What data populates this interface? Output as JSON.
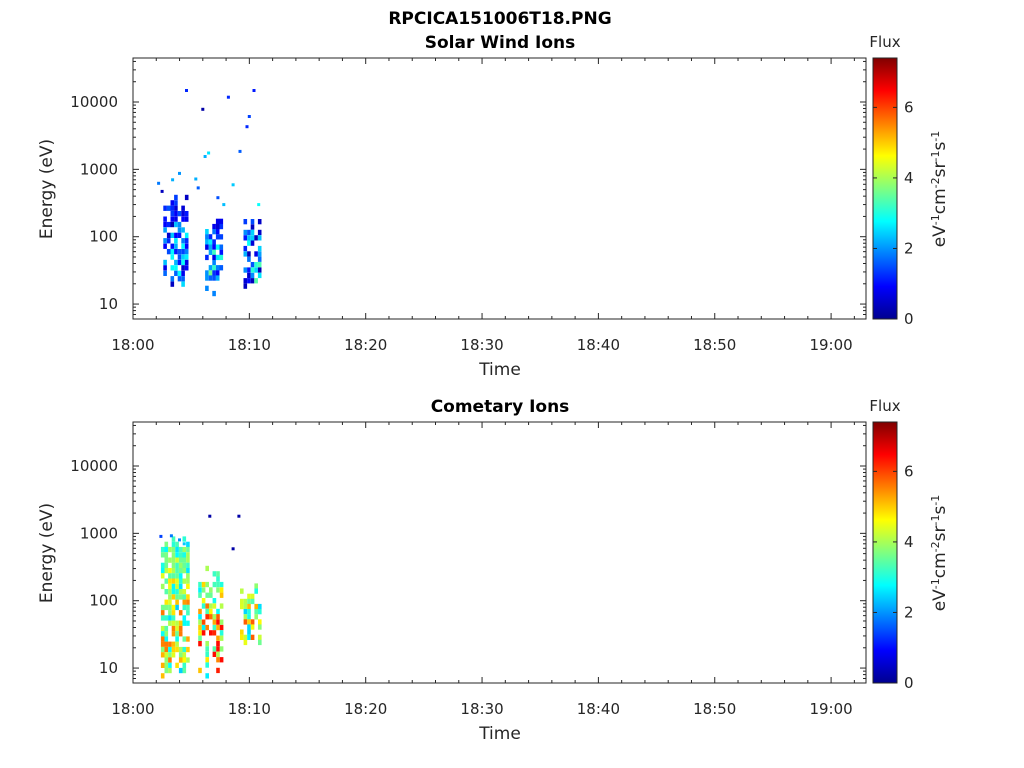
{
  "figure": {
    "title": "RPCICA151006T18.PNG"
  },
  "colormap": {
    "name": "jet",
    "stops": [
      "#00008f",
      "#0000ff",
      "#00ffff",
      "#ffff00",
      "#ff0000",
      "#800000"
    ]
  },
  "chart_data": [
    {
      "type": "heatmap",
      "title": "Solar Wind Ions",
      "xlabel": "Time",
      "ylabel": "Energy (eV)",
      "yscale": "log",
      "xlim": [
        "18:00",
        "19:03"
      ],
      "ylim": [
        6,
        45000
      ],
      "xticks": [
        "18:00",
        "18:10",
        "18:20",
        "18:30",
        "18:40",
        "18:50",
        "19:00"
      ],
      "yticks": [
        10,
        100,
        1000,
        10000
      ],
      "yticklabels": [
        "10",
        "100",
        "1000",
        "10000"
      ],
      "colorbar": {
        "label": "Flux",
        "unit": "eV-1cm-2sr-1s-1",
        "range": [
          0,
          7.4
        ],
        "ticks": [
          "0",
          "2",
          "4",
          "6"
        ]
      },
      "bursts": [
        {
          "time_start": "18:02.6",
          "time_end": "18:04.8",
          "energy_min": 18,
          "energy_max": 420,
          "flux_min": 0.3,
          "flux_max": 2.8
        },
        {
          "time_start": "18:06.2",
          "time_end": "18:07.6",
          "energy_min": 11,
          "energy_max": 220,
          "flux_min": 0.5,
          "flux_max": 3.6
        },
        {
          "time_start": "18:09.5",
          "time_end": "18:11.2",
          "energy_min": 14,
          "energy_max": 220,
          "flux_min": 0.3,
          "flux_max": 3.4
        }
      ],
      "sparse_points": [
        {
          "time": "18:02.2",
          "energy": 620,
          "flux": 1.8
        },
        {
          "time": "18:02.5",
          "energy": 470,
          "flux": 0.4
        },
        {
          "time": "18:03.4",
          "energy": 700,
          "flux": 2.2
        },
        {
          "time": "18:04.0",
          "energy": 870,
          "flux": 2.0
        },
        {
          "time": "18:04.6",
          "energy": 14800,
          "flux": 1.2
        },
        {
          "time": "18:05.4",
          "energy": 720,
          "flux": 2.2
        },
        {
          "time": "18:05.6",
          "energy": 530,
          "flux": 1.6
        },
        {
          "time": "18:06.0",
          "energy": 7800,
          "flux": 0.2
        },
        {
          "time": "18:06.2",
          "energy": 1550,
          "flux": 2.2
        },
        {
          "time": "18:06.5",
          "energy": 1750,
          "flux": 2.6
        },
        {
          "time": "18:07.3",
          "energy": 380,
          "flux": 1.5
        },
        {
          "time": "18:07.8",
          "energy": 300,
          "flux": 2.3
        },
        {
          "time": "18:08.2",
          "energy": 11800,
          "flux": 1.2
        },
        {
          "time": "18:08.6",
          "energy": 590,
          "flux": 2.4
        },
        {
          "time": "18:09.2",
          "energy": 1850,
          "flux": 1.6
        },
        {
          "time": "18:09.8",
          "energy": 4300,
          "flux": 1.2
        },
        {
          "time": "18:10.0",
          "energy": 6100,
          "flux": 1.4
        },
        {
          "time": "18:10.4",
          "energy": 14800,
          "flux": 1.1
        },
        {
          "time": "18:10.8",
          "energy": 300,
          "flux": 2.8
        }
      ]
    },
    {
      "type": "heatmap",
      "title": "Cometary Ions",
      "xlabel": "Time",
      "ylabel": "Energy (eV)",
      "yscale": "log",
      "xlim": [
        "18:00",
        "19:03"
      ],
      "ylim": [
        6,
        45000
      ],
      "xticks": [
        "18:00",
        "18:10",
        "18:20",
        "18:30",
        "18:40",
        "18:50",
        "19:00"
      ],
      "yticks": [
        10,
        100,
        1000,
        10000
      ],
      "yticklabels": [
        "10",
        "100",
        "1000",
        "10000"
      ],
      "colorbar": {
        "label": "Flux",
        "unit": "eV-1cm-2sr-1s-1",
        "range": [
          0,
          7.4
        ],
        "ticks": [
          "0",
          "2",
          "4",
          "6"
        ]
      },
      "bursts": [
        {
          "time_start": "18:02.4",
          "time_end": "18:04.9",
          "energy_min": 7,
          "energy_max": 900,
          "flux_min": 2.4,
          "flux_max": 5.6
        },
        {
          "time_start": "18:05.6",
          "time_end": "18:07.8",
          "energy_min": 7,
          "energy_max": 330,
          "flux_min": 2.6,
          "flux_max": 6.4
        },
        {
          "time_start": "18:09.2",
          "time_end": "18:11.2",
          "energy_min": 22,
          "energy_max": 180,
          "flux_min": 2.4,
          "flux_max": 5.8
        }
      ],
      "sparse_points": [
        {
          "time": "18:02.4",
          "energy": 900,
          "flux": 1.4
        },
        {
          "time": "18:03.3",
          "energy": 920,
          "flux": 1.8
        },
        {
          "time": "18:04.0",
          "energy": 800,
          "flux": 2.0
        },
        {
          "time": "18:04.4",
          "energy": 700,
          "flux": 2.4
        },
        {
          "time": "18:06.6",
          "energy": 1800,
          "flux": 0.2
        },
        {
          "time": "18:08.6",
          "energy": 590,
          "flux": 0.2
        },
        {
          "time": "18:09.1",
          "energy": 1800,
          "flux": 0.2
        }
      ]
    }
  ]
}
